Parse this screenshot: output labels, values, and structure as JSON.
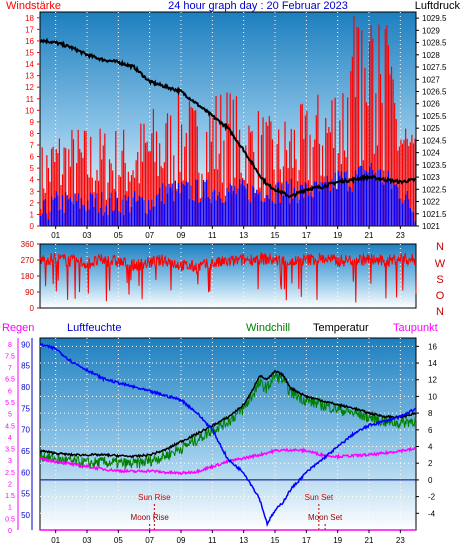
{
  "colors": {
    "wind_speed": "#ff0000",
    "wind_gust": "#0000ff",
    "pressure": "#000000",
    "wind_dir": "#ff0000",
    "temperature": "#000000",
    "windchill": "#008000",
    "dewpoint": "#ff00ff",
    "humidity": "#0000ff",
    "rain": "#ff00ff",
    "sun": "#cc0000",
    "moon": "#990000"
  },
  "chart_data": [
    {
      "type": "line",
      "title": "24 hour graph day : 20 Februar 2023",
      "left_axis_label": "Windstärke",
      "right_axis_label": "Luftdruck",
      "x_ticks": [
        "01",
        "03",
        "05",
        "07",
        "09",
        "11",
        "13",
        "15",
        "17",
        "19",
        "21",
        "23"
      ],
      "x_range": [
        0,
        24
      ],
      "left_ticks": [
        0,
        1,
        2,
        3,
        4,
        5,
        6,
        7,
        8,
        9,
        10,
        11,
        12,
        13,
        14,
        15,
        16,
        17,
        18
      ],
      "left_range": [
        0,
        18.5
      ],
      "right_ticks": [
        "1029.5",
        "1029",
        "1028.5",
        "1028",
        "1027.5",
        "1027",
        "1026.5",
        "1026",
        "1025.5",
        "1025",
        "1024.5",
        "1024",
        "1023.5",
        "1023",
        "1022.5",
        "1022",
        "1021.5",
        "1021"
      ],
      "right_range": [
        1021,
        1029.75
      ],
      "series": [
        {
          "name": "Luftdruck",
          "x": [
            0,
            1,
            2,
            3,
            4,
            5,
            6,
            6.5,
            7,
            8,
            9,
            10,
            11,
            12,
            13,
            13.5,
            14,
            14.5,
            15,
            16,
            17,
            18,
            19,
            20,
            21,
            22,
            23,
            24
          ],
          "y": [
            1028.6,
            1028.5,
            1028.3,
            1028.0,
            1027.8,
            1027.7,
            1027.5,
            1027.2,
            1026.9,
            1026.7,
            1026.5,
            1026.0,
            1025.5,
            1025.0,
            1024.1,
            1023.6,
            1023.1,
            1022.7,
            1022.5,
            1022.2,
            1022.5,
            1022.6,
            1022.8,
            1022.9,
            1023.0,
            1022.9,
            1022.8,
            1022.9
          ]
        },
        {
          "name": "Windspeed",
          "x": [
            0,
            1,
            2,
            3,
            4,
            5,
            6,
            7,
            8,
            9,
            10,
            11,
            12,
            13,
            14,
            15,
            16,
            17,
            18,
            19,
            20,
            21,
            22,
            23,
            24
          ],
          "y": [
            4,
            5,
            5,
            5,
            5,
            5,
            5,
            6,
            6,
            7,
            6,
            7,
            7,
            6,
            6,
            5,
            6,
            6,
            7,
            8,
            9,
            11,
            10,
            7,
            4
          ]
        },
        {
          "name": "Windgust",
          "x": [
            0,
            1,
            2,
            3,
            4,
            5,
            6,
            7,
            8,
            9,
            10,
            11,
            12,
            13,
            14,
            15,
            16,
            17,
            18,
            19,
            20,
            21,
            22,
            23,
            24
          ],
          "y": [
            1,
            2,
            2,
            2,
            2,
            2,
            2,
            2,
            3,
            3,
            3,
            3,
            3,
            3,
            3,
            3,
            3,
            3,
            3,
            4,
            4,
            5,
            4,
            3,
            1
          ]
        }
      ]
    },
    {
      "type": "scatter",
      "right_axis_label": [
        "N",
        "W",
        "S",
        "O",
        "N"
      ],
      "left_ticks": [
        0,
        90,
        180,
        270,
        360
      ],
      "y_range": [
        0,
        360
      ],
      "x_range": [
        0,
        24
      ],
      "series": [
        {
          "name": "Windrichtung",
          "x": [
            0,
            1,
            2,
            3,
            4,
            5,
            6,
            7,
            8,
            9,
            10,
            11,
            12,
            13,
            14,
            15,
            16,
            17,
            18,
            19,
            20,
            21,
            22,
            23,
            24
          ],
          "y": [
            270,
            280,
            265,
            250,
            270,
            260,
            240,
            255,
            270,
            240,
            230,
            250,
            260,
            270,
            280,
            270,
            260,
            270,
            280,
            265,
            270,
            275,
            260,
            280,
            270
          ]
        }
      ]
    },
    {
      "type": "line",
      "labels": [
        "Regen",
        "Luftfeuchte",
        "Windchill",
        "Temperatur",
        "Taupunkt"
      ],
      "x_ticks": [
        "01",
        "03",
        "05",
        "07",
        "09",
        "11",
        "13",
        "15",
        "17",
        "19",
        "21",
        "23"
      ],
      "x_range": [
        0,
        24
      ],
      "rain_ticks": [
        "0",
        "0.5",
        "1",
        "1.5",
        "2",
        "2.5",
        "3",
        "3.5",
        "4",
        "4.5",
        "5",
        "5.5",
        "6",
        "6.5",
        "7",
        "7.5",
        "8"
      ],
      "rain_range": [
        0,
        8.25
      ],
      "humidity_ticks": [
        50,
        55,
        60,
        65,
        70,
        75,
        80,
        85,
        90
      ],
      "humidity_range": [
        46.5,
        91.5
      ],
      "temp_ticks": [
        -4,
        -2,
        0,
        2,
        4,
        6,
        8,
        10,
        12,
        14,
        16
      ],
      "temp_range": [
        -6,
        17
      ],
      "events": [
        {
          "label": "Sun Rise",
          "x": 7.3,
          "row": "upper"
        },
        {
          "label": "Sun Set",
          "x": 17.8,
          "row": "upper"
        },
        {
          "label": "Moon Rise",
          "x": 7.0,
          "row": "lower"
        },
        {
          "label": "Moon Set",
          "x": 18.2,
          "row": "lower"
        }
      ],
      "series": [
        {
          "name": "Temperatur",
          "axis": "temp",
          "x": [
            0,
            1,
            2,
            3,
            4,
            5,
            6,
            7,
            8,
            9,
            10,
            11,
            12,
            13,
            13.5,
            14,
            14.5,
            15,
            15.5,
            16,
            17,
            18,
            19,
            20,
            21,
            22,
            23,
            24
          ],
          "y": [
            3.5,
            3.2,
            3.0,
            3.0,
            3.0,
            2.9,
            2.8,
            3.0,
            3.6,
            4.6,
            5.5,
            6.5,
            7.5,
            9.0,
            10.5,
            12.5,
            12.0,
            13.0,
            12.6,
            11.0,
            10.0,
            9.5,
            9.0,
            8.6,
            8.0,
            7.6,
            7.5,
            8.0
          ]
        },
        {
          "name": "Windchill",
          "axis": "temp",
          "x": [
            0,
            1,
            2,
            3,
            4,
            5,
            6,
            7,
            8,
            9,
            10,
            11,
            12,
            13,
            13.5,
            14,
            14.5,
            15,
            15.5,
            16,
            17,
            18,
            19,
            20,
            21,
            22,
            23,
            24
          ],
          "y": [
            3.0,
            2.5,
            2.2,
            2.0,
            2.1,
            2.0,
            1.9,
            2.3,
            2.9,
            3.8,
            4.8,
            6.0,
            7.0,
            8.5,
            10.0,
            11.5,
            11.0,
            12.5,
            12.0,
            10.5,
            9.5,
            9.0,
            8.5,
            8.0,
            7.5,
            7.0,
            6.8,
            7.2
          ]
        },
        {
          "name": "Taupunkt",
          "axis": "temp",
          "x": [
            0,
            1,
            2,
            3,
            4,
            5,
            6,
            7,
            8,
            9,
            10,
            11,
            12,
            13,
            14,
            15,
            16,
            17,
            18,
            19,
            20,
            21,
            22,
            23,
            24
          ],
          "y": [
            2.5,
            2.2,
            1.9,
            1.6,
            1.3,
            1.1,
            1.0,
            1.1,
            0.9,
            0.8,
            1.0,
            1.6,
            2.2,
            2.6,
            3.0,
            3.5,
            3.6,
            3.5,
            3.0,
            2.8,
            2.9,
            3.0,
            3.2,
            3.5,
            3.7
          ]
        },
        {
          "name": "Luftfeuchte",
          "axis": "humidity",
          "x": [
            0,
            1,
            2,
            3,
            4,
            5,
            6,
            7,
            8,
            9,
            10,
            11,
            12,
            13,
            14,
            14.5,
            15,
            15.5,
            16,
            17,
            18,
            19,
            20,
            21,
            22,
            23,
            24
          ],
          "y": [
            90,
            89,
            86,
            84,
            82,
            81,
            80,
            79,
            78,
            77,
            74,
            70,
            63,
            60,
            54,
            48,
            51,
            53,
            56,
            60,
            63,
            66,
            69,
            71,
            72,
            73,
            75
          ]
        },
        {
          "name": "Regen",
          "axis": "rain",
          "x": [
            0,
            24
          ],
          "y": [
            0,
            0
          ]
        }
      ]
    }
  ]
}
